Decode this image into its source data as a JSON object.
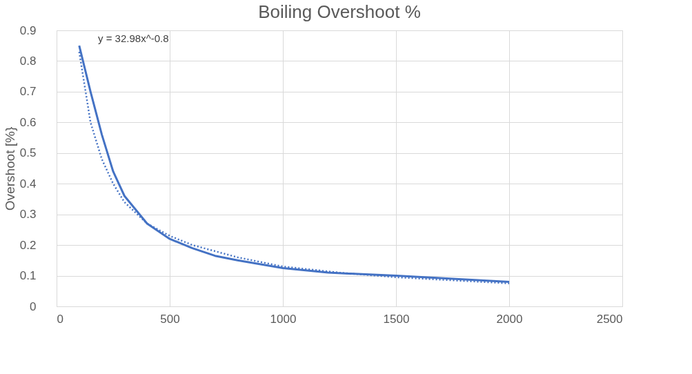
{
  "chart_data": {
    "type": "line",
    "title": "Boiling Overshoot %",
    "ylabel": "Overshoot [%}",
    "xlim": [
      0,
      2500
    ],
    "xticks": [
      0,
      500,
      1000,
      1500,
      2000,
      2500
    ],
    "ylim": [
      0,
      0.9
    ],
    "yticks": [
      0,
      0.1,
      0.2,
      0.3,
      0.4,
      0.5,
      0.6,
      0.7,
      0.8,
      0.9
    ],
    "grid": true,
    "series": [
      {
        "color": "#4472c4",
        "line_style": "solid",
        "x": [
          100,
          150,
          200,
          250,
          300,
          400,
          500,
          600,
          700,
          800,
          1000,
          1200,
          1500,
          1750,
          2000
        ],
        "values": [
          0.85,
          0.7,
          0.56,
          0.44,
          0.36,
          0.27,
          0.22,
          0.19,
          0.165,
          0.15,
          0.125,
          0.11,
          0.1,
          0.09,
          0.08
        ]
      },
      {
        "type": "line",
        "color": "#4472c4",
        "line_style": "dotted",
        "x": [
          100,
          150,
          200,
          250,
          300,
          400,
          500,
          600,
          800,
          1000,
          1250,
          1500,
          1750,
          2000
        ],
        "values": [
          0.83,
          0.6,
          0.48,
          0.4,
          0.34,
          0.27,
          0.23,
          0.2,
          0.16,
          0.13,
          0.11,
          0.095,
          0.085,
          0.075
        ]
      }
    ],
    "annotations": [
      "y = 32.98x^-0.8"
    ]
  }
}
